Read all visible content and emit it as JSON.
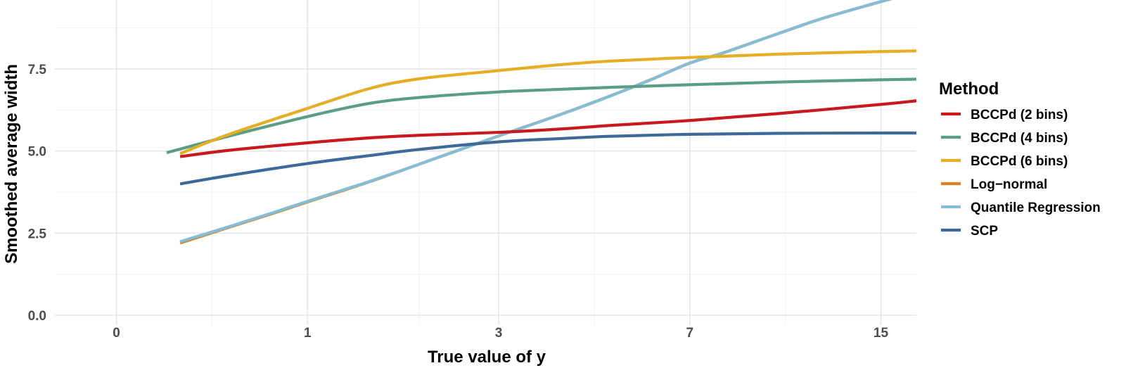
{
  "chart_data": {
    "type": "line",
    "xlabel": "True value of y",
    "ylabel": "Smoothed average width",
    "x_scale": "log1p",
    "x_tick_labels": [
      "0",
      "1",
      "3",
      "7",
      "15"
    ],
    "x_ticks": [
      0,
      1,
      3,
      7,
      15
    ],
    "x_minor_ticks": [
      0.4142,
      2,
      4.657,
      10.314
    ],
    "xlim": [
      -0.2,
      17.2
    ],
    "y_ticks": [
      0,
      2.5,
      5,
      7.5
    ],
    "y_tick_labels": [
      "0.0",
      "2.5",
      "5.0",
      "7.5"
    ],
    "y_minor_ticks": [
      1.25,
      3.75,
      6.25,
      8.75
    ],
    "ylim": [
      -0.3,
      9.6
    ],
    "grid": true,
    "legend": {
      "title": "Method",
      "position": "right"
    },
    "series": [
      {
        "name": "Log−normal",
        "color": "#D98324",
        "x": [
          0.26,
          0.5,
          0.75,
          1,
          1.5,
          2,
          3,
          4,
          5,
          6,
          7,
          8,
          10,
          12,
          15,
          17.2
        ],
        "y": [
          2.2,
          2.67,
          3.08,
          3.45,
          4.06,
          4.6,
          5.46,
          6.11,
          6.68,
          7.2,
          7.68,
          7.98,
          8.57,
          9.05,
          9.55,
          9.85
        ]
      },
      {
        "name": "Quantile Regression",
        "color": "#86BCD6",
        "x": [
          0.26,
          0.5,
          0.75,
          1,
          1.5,
          2,
          3,
          4,
          5,
          6,
          7,
          8,
          10,
          12,
          15,
          17.2
        ],
        "y": [
          2.24,
          2.69,
          3.1,
          3.47,
          4.07,
          4.6,
          5.46,
          6.11,
          6.68,
          7.2,
          7.68,
          7.98,
          8.57,
          9.05,
          9.55,
          9.85
        ]
      },
      {
        "name": "SCP",
        "color": "#3D6A98",
        "x": [
          0.26,
          0.5,
          1,
          1.5,
          2,
          3,
          4,
          5,
          7,
          10,
          15,
          17.2
        ],
        "y": [
          4.0,
          4.25,
          4.62,
          4.86,
          5.05,
          5.28,
          5.38,
          5.45,
          5.51,
          5.54,
          5.55,
          5.55
        ]
      },
      {
        "name": "BCCPd (2 bins)",
        "color": "#C7191E",
        "x": [
          0.26,
          0.5,
          1,
          1.5,
          2,
          3,
          4,
          5,
          7,
          10,
          15,
          17.2
        ],
        "y": [
          4.83,
          5.02,
          5.25,
          5.4,
          5.48,
          5.57,
          5.67,
          5.78,
          5.93,
          6.14,
          6.42,
          6.53
        ]
      },
      {
        "name": "BCCPd (4 bins)",
        "color": "#5A9E83",
        "x": [
          0.2,
          0.5,
          1,
          1.5,
          2,
          3,
          4,
          5,
          7,
          10,
          15,
          17.2
        ],
        "y": [
          4.95,
          5.45,
          6.05,
          6.45,
          6.63,
          6.8,
          6.88,
          6.94,
          7.02,
          7.1,
          7.17,
          7.19
        ]
      },
      {
        "name": "BCCPd (6 bins)",
        "color": "#E5AE25",
        "x": [
          0.26,
          0.5,
          1,
          1.5,
          2,
          3,
          4,
          5,
          7,
          10,
          15,
          17.2
        ],
        "y": [
          4.92,
          5.5,
          6.3,
          6.9,
          7.2,
          7.45,
          7.63,
          7.74,
          7.85,
          7.95,
          8.03,
          8.05
        ]
      }
    ],
    "legend_order": [
      "BCCPd (2 bins)",
      "BCCPd (4 bins)",
      "BCCPd (6 bins)",
      "Log−normal",
      "Quantile Regression",
      "SCP"
    ]
  }
}
